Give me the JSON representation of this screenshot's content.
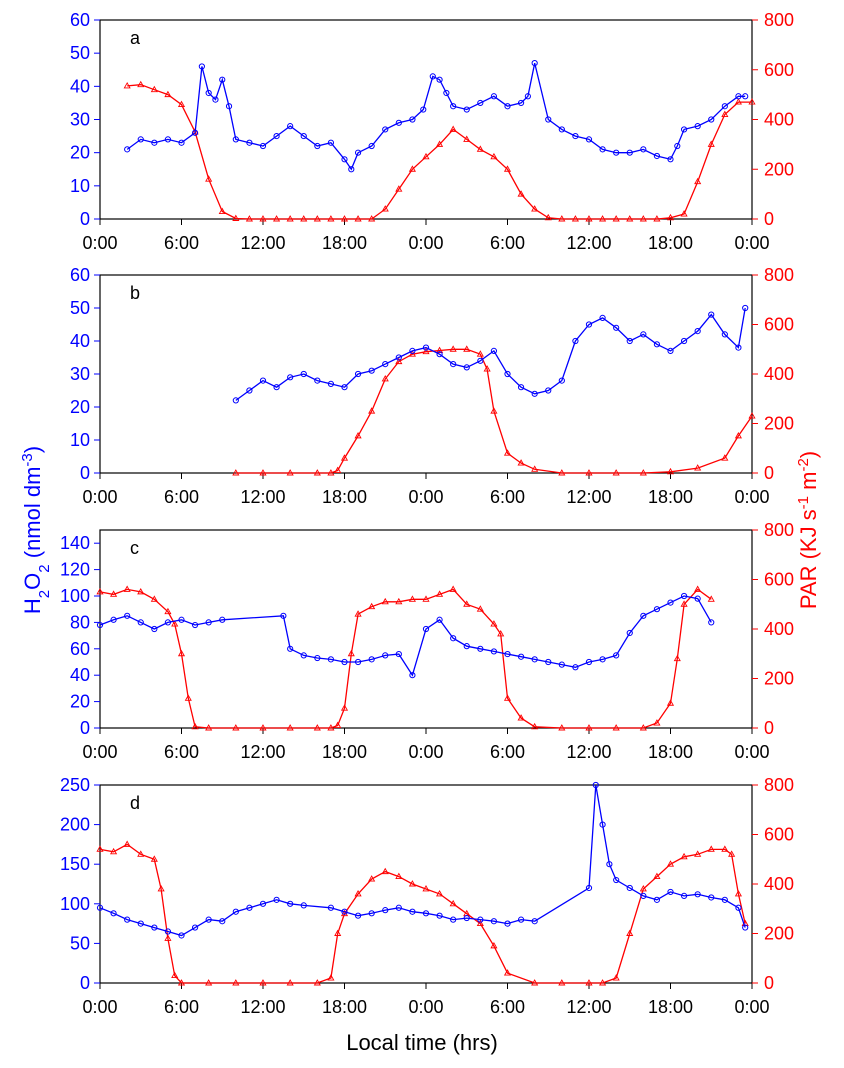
{
  "colors": {
    "h2o2": "#0000ff",
    "par": "#ff0000",
    "axis": "#000000"
  },
  "axis_text": {
    "xlabel": "Local time (hrs)",
    "ylabel_left": {
      "base": "H",
      "sub1": "2",
      "mid": "O",
      "sub2": "2",
      "rest": " (nmol dm",
      "sup": "-3",
      "close": ")"
    },
    "ylabel_right": {
      "base": "PAR (KJ s",
      "sup1": "-1",
      "mid": " m",
      "sup2": "-2",
      "close": ")"
    }
  },
  "chart_data": [
    {
      "type": "line",
      "panel_label": "a",
      "xlim": [
        0,
        48
      ],
      "x_ticks": [
        0,
        6,
        12,
        18,
        24,
        30,
        36,
        42,
        48
      ],
      "x_tick_labels": [
        "0:00",
        "6:00",
        "12:00",
        "18:00",
        "0:00",
        "6:00",
        "12:00",
        "18:00",
        "0:00"
      ],
      "ylim_left": [
        0,
        60
      ],
      "yticks_left": [
        0,
        10,
        20,
        30,
        40,
        50,
        60
      ],
      "ylim_right": [
        0,
        800
      ],
      "yticks_right": [
        0,
        200,
        400,
        600,
        800
      ],
      "series": [
        {
          "axis": "left",
          "marker": "circle",
          "color": "#0000ff",
          "x": [
            2,
            3,
            4,
            5,
            6,
            7,
            7.5,
            8,
            8.5,
            9,
            9.5,
            10,
            11,
            12,
            13,
            14,
            15,
            16,
            17,
            18,
            18.5,
            19,
            20,
            21,
            22,
            23,
            23.8,
            24.5,
            25,
            25.5,
            26,
            27,
            28,
            29,
            30,
            31,
            31.5,
            32,
            33,
            34,
            35,
            36,
            37,
            38,
            39,
            40,
            41,
            42,
            42.5,
            43,
            44,
            45,
            46,
            47,
            47.5
          ],
          "y": [
            21,
            24,
            23,
            24,
            23,
            26,
            46,
            38,
            36,
            42,
            34,
            24,
            23,
            22,
            25,
            28,
            25,
            22,
            23,
            18,
            15,
            20,
            22,
            27,
            29,
            30,
            33,
            43,
            42,
            38,
            34,
            33,
            35,
            37,
            34,
            35,
            37,
            47,
            30,
            27,
            25,
            24,
            21,
            20,
            20,
            21,
            19,
            18,
            22,
            27,
            28,
            30,
            34,
            37,
            37
          ]
        },
        {
          "axis": "right",
          "marker": "triangle",
          "color": "#ff0000",
          "x": [
            2,
            3,
            4,
            5,
            6,
            7,
            8,
            9,
            10,
            11,
            12,
            13,
            14,
            15,
            16,
            17,
            18,
            19,
            20,
            21,
            22,
            23,
            24,
            25,
            26,
            27,
            28,
            29,
            30,
            31,
            32,
            33,
            34,
            35,
            36,
            37,
            38,
            39,
            40,
            41,
            42,
            43,
            44,
            45,
            46,
            47,
            48
          ],
          "y": [
            535,
            540,
            520,
            500,
            460,
            350,
            160,
            30,
            2,
            0,
            0,
            0,
            0,
            0,
            0,
            0,
            0,
            0,
            0,
            40,
            120,
            200,
            250,
            300,
            360,
            320,
            280,
            250,
            200,
            100,
            40,
            5,
            0,
            0,
            0,
            0,
            0,
            0,
            0,
            0,
            5,
            20,
            150,
            300,
            420,
            470,
            470
          ]
        }
      ]
    },
    {
      "type": "line",
      "panel_label": "b",
      "xlim": [
        0,
        48
      ],
      "x_ticks": [
        0,
        6,
        12,
        18,
        24,
        30,
        36,
        42,
        48
      ],
      "x_tick_labels": [
        "0:00",
        "6:00",
        "12:00",
        "18:00",
        "0:00",
        "6:00",
        "12:00",
        "18:00",
        "0:00"
      ],
      "ylim_left": [
        0,
        60
      ],
      "yticks_left": [
        0,
        10,
        20,
        30,
        40,
        50,
        60
      ],
      "ylim_right": [
        0,
        800
      ],
      "yticks_right": [
        0,
        200,
        400,
        600,
        800
      ],
      "series": [
        {
          "axis": "left",
          "marker": "circle",
          "color": "#0000ff",
          "x": [
            10,
            11,
            12,
            13,
            14,
            15,
            16,
            17,
            18,
            19,
            20,
            21,
            22,
            23,
            24,
            25,
            26,
            27,
            28,
            29,
            30,
            31,
            32,
            33,
            34,
            35,
            36,
            37,
            38,
            39,
            40,
            41,
            42,
            43,
            44,
            45,
            46,
            47,
            47.5
          ],
          "y": [
            22,
            25,
            28,
            26,
            29,
            30,
            28,
            27,
            26,
            30,
            31,
            33,
            35,
            37,
            38,
            36,
            33,
            32,
            34,
            37,
            30,
            26,
            24,
            25,
            28,
            40,
            45,
            47,
            44,
            40,
            42,
            39,
            37,
            40,
            43,
            48,
            42,
            38,
            50
          ]
        },
        {
          "axis": "right",
          "marker": "triangle",
          "color": "#ff0000",
          "x": [
            10,
            12,
            14,
            16,
            17,
            17.5,
            18,
            19,
            20,
            21,
            22,
            23,
            24,
            25,
            26,
            27,
            28,
            28.5,
            29,
            30,
            31,
            32,
            34,
            36,
            38,
            40,
            42,
            44,
            46,
            47,
            48
          ],
          "y": [
            0,
            0,
            0,
            0,
            0,
            10,
            60,
            150,
            250,
            380,
            450,
            480,
            490,
            495,
            500,
            500,
            480,
            420,
            250,
            80,
            40,
            15,
            0,
            0,
            0,
            0,
            5,
            20,
            60,
            150,
            230
          ]
        }
      ]
    },
    {
      "type": "line",
      "panel_label": "c",
      "xlim": [
        0,
        48
      ],
      "x_ticks": [
        0,
        6,
        12,
        18,
        24,
        30,
        36,
        42,
        48
      ],
      "x_tick_labels": [
        "0:00",
        "6:00",
        "12:00",
        "18:00",
        "0:00",
        "6:00",
        "12:00",
        "18:00",
        "0:00"
      ],
      "ylim_left": [
        0,
        150
      ],
      "yticks_left": [
        0,
        20,
        40,
        60,
        80,
        100,
        120,
        140
      ],
      "ylim_right": [
        0,
        800
      ],
      "yticks_right": [
        0,
        200,
        400,
        600,
        800
      ],
      "series": [
        {
          "axis": "left",
          "marker": "circle",
          "color": "#0000ff",
          "x": [
            0,
            1,
            2,
            3,
            4,
            5,
            6,
            7,
            8,
            9,
            13.5,
            14,
            15,
            16,
            17,
            18,
            19,
            20,
            21,
            22,
            23,
            24,
            25,
            26,
            27,
            28,
            29,
            30,
            31,
            32,
            33,
            34,
            35,
            36,
            37,
            38,
            39,
            40,
            41,
            42,
            43,
            44,
            45
          ],
          "y": [
            78,
            82,
            85,
            80,
            75,
            80,
            82,
            78,
            80,
            82,
            85,
            60,
            55,
            53,
            52,
            50,
            50,
            52,
            55,
            56,
            40,
            75,
            82,
            68,
            62,
            60,
            58,
            56,
            54,
            52,
            50,
            48,
            46,
            50,
            52,
            55,
            72,
            85,
            90,
            95,
            100,
            98,
            80
          ]
        },
        {
          "axis": "right",
          "marker": "triangle",
          "color": "#ff0000",
          "x": [
            0,
            1,
            2,
            3,
            4,
            5,
            5.5,
            6,
            6.5,
            7,
            8,
            10,
            12,
            14,
            16,
            17,
            17.5,
            18,
            18.5,
            19,
            20,
            21,
            22,
            23,
            24,
            25,
            26,
            27,
            28,
            29,
            29.5,
            30,
            31,
            32,
            34,
            36,
            38,
            40,
            41,
            42,
            42.5,
            43,
            44,
            45
          ],
          "y": [
            550,
            540,
            560,
            550,
            520,
            470,
            420,
            300,
            120,
            5,
            0,
            0,
            0,
            0,
            0,
            0,
            10,
            80,
            300,
            460,
            490,
            510,
            510,
            520,
            520,
            540,
            560,
            500,
            480,
            420,
            380,
            120,
            40,
            5,
            0,
            0,
            0,
            0,
            20,
            100,
            280,
            500,
            560,
            520
          ]
        }
      ]
    },
    {
      "type": "line",
      "panel_label": "d",
      "xlim": [
        0,
        48
      ],
      "x_ticks": [
        0,
        6,
        12,
        18,
        24,
        30,
        36,
        42,
        48
      ],
      "x_tick_labels": [
        "0:00",
        "6:00",
        "12:00",
        "18:00",
        "0:00",
        "6:00",
        "12:00",
        "18:00",
        "0:00"
      ],
      "ylim_left": [
        0,
        250
      ],
      "yticks_left": [
        0,
        50,
        100,
        150,
        200,
        250
      ],
      "ylim_right": [
        0,
        800
      ],
      "yticks_right": [
        0,
        200,
        400,
        600,
        800
      ],
      "series": [
        {
          "axis": "left",
          "marker": "circle",
          "color": "#0000ff",
          "x": [
            0,
            1,
            2,
            3,
            4,
            5,
            6,
            7,
            8,
            9,
            10,
            11,
            12,
            13,
            14,
            15,
            17,
            18,
            19,
            20,
            21,
            22,
            23,
            24,
            25,
            26,
            27,
            28,
            29,
            30,
            31,
            32,
            36,
            36.5,
            37,
            37.5,
            38,
            39,
            40,
            41,
            42,
            43,
            44,
            45,
            46,
            47,
            47.5
          ],
          "y": [
            95,
            88,
            80,
            75,
            70,
            65,
            60,
            70,
            80,
            78,
            90,
            95,
            100,
            105,
            100,
            98,
            95,
            90,
            85,
            88,
            92,
            95,
            90,
            88,
            85,
            80,
            82,
            80,
            78,
            75,
            80,
            78,
            120,
            250,
            200,
            150,
            130,
            120,
            110,
            105,
            115,
            110,
            112,
            108,
            105,
            95,
            70
          ]
        },
        {
          "axis": "right",
          "marker": "triangle",
          "color": "#ff0000",
          "x": [
            0,
            1,
            2,
            3,
            4,
            4.5,
            5,
            5.5,
            6,
            8,
            10,
            12,
            14,
            16,
            17,
            17.5,
            18,
            19,
            20,
            21,
            22,
            23,
            24,
            25,
            26,
            27,
            28,
            29,
            30,
            32,
            34,
            36,
            37,
            38,
            39,
            40,
            41,
            42,
            43,
            44,
            45,
            46,
            46.5,
            47,
            47.5
          ],
          "y": [
            540,
            530,
            560,
            520,
            500,
            380,
            180,
            30,
            0,
            0,
            0,
            0,
            0,
            0,
            20,
            200,
            280,
            360,
            420,
            450,
            430,
            400,
            380,
            360,
            320,
            280,
            240,
            150,
            40,
            0,
            0,
            0,
            0,
            20,
            200,
            380,
            430,
            480,
            510,
            520,
            540,
            540,
            520,
            360,
            240
          ]
        }
      ]
    }
  ]
}
